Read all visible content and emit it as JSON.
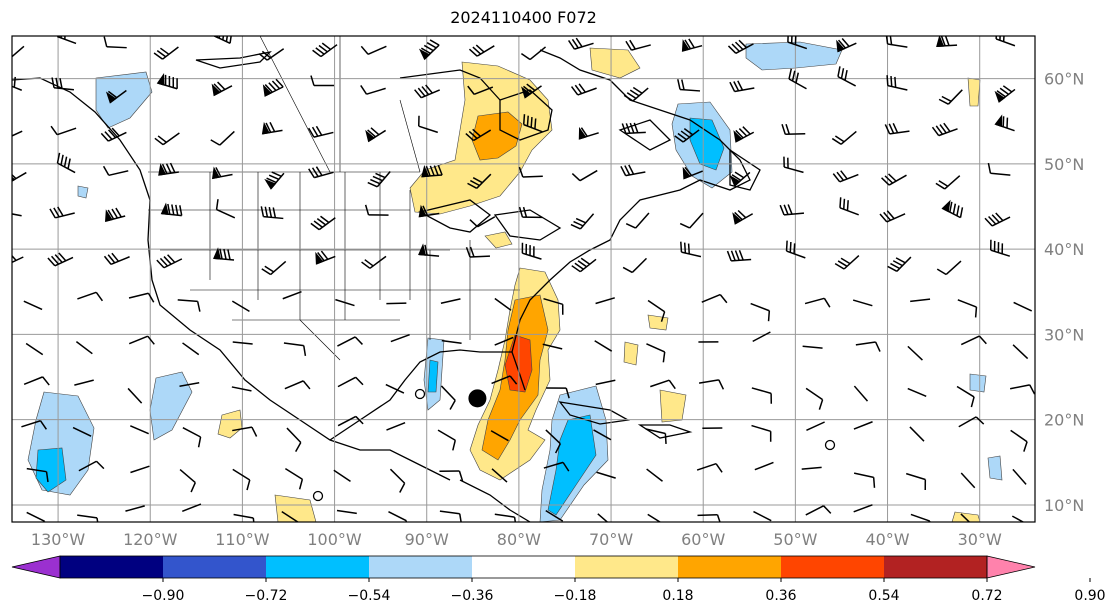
{
  "title": "2024110400 F072",
  "longitude_labels": [
    "130°W",
    "120°W",
    "110°W",
    "100°W",
    "90°W",
    "80°W",
    "70°W",
    "60°W",
    "50°W",
    "40°W",
    "30°W"
  ],
  "latitude_labels": [
    "60°N",
    "50°N",
    "40°N",
    "30°N",
    "20°N",
    "10°N"
  ],
  "colorbar": {
    "tick_labels": [
      "−0.90",
      "−0.72",
      "−0.54",
      "−0.36",
      "−0.18",
      "0.18",
      "0.36",
      "0.54",
      "0.72",
      "0.90"
    ],
    "colors": [
      "#9b30d0",
      "#000080",
      "#3355cc",
      "#00bfff",
      "#add8f8",
      "#ffffff",
      "#ffe88a",
      "#ffa500",
      "#ff4500",
      "#b22222",
      "#ff82ac"
    ]
  },
  "grid_line_color": "#999999",
  "map_bounds": {
    "lon_min": -135,
    "lon_max": -24,
    "lat_min": 8,
    "lat_max": 65
  },
  "storm_marker": {
    "lon": -84.5,
    "lat": 22.5
  }
}
